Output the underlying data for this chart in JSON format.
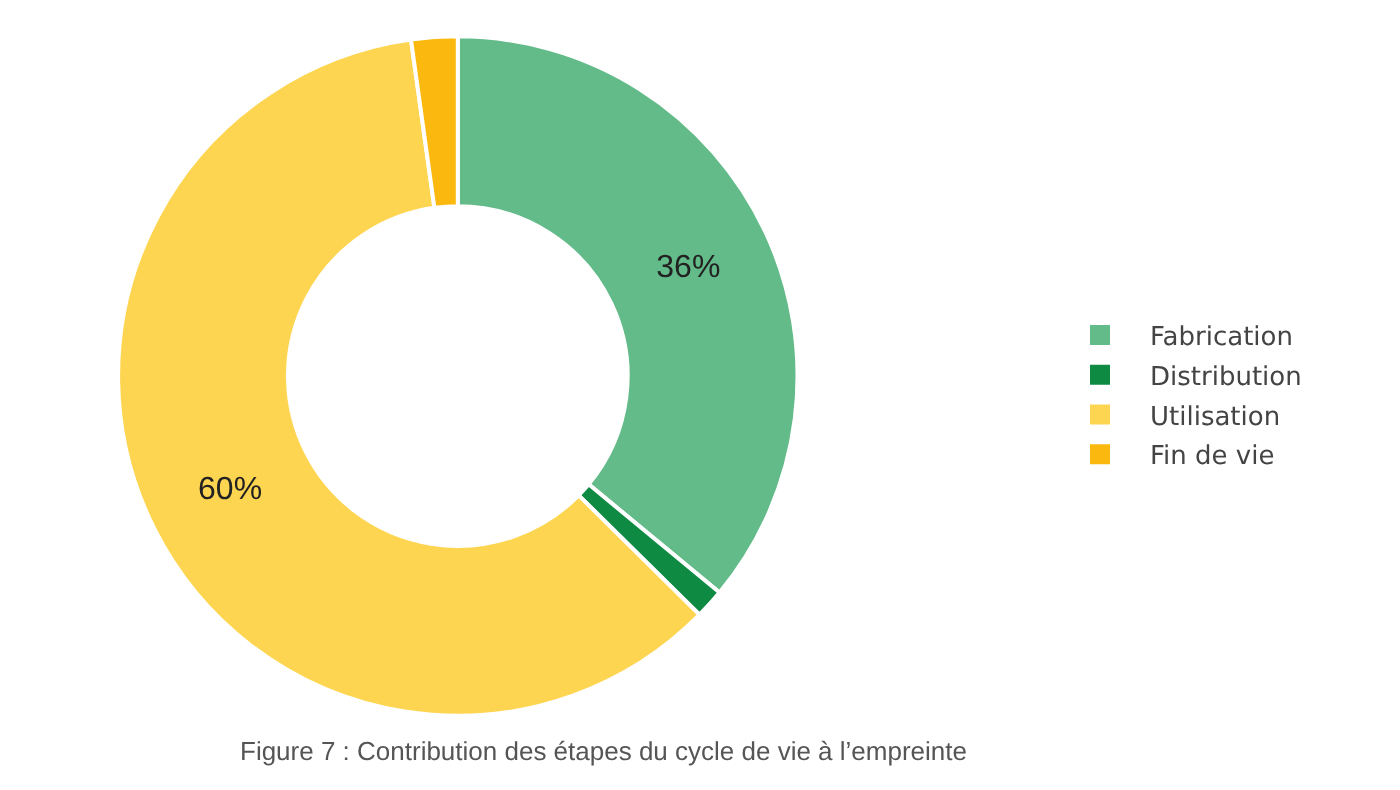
{
  "chart_data": {
    "type": "donut",
    "categories": [
      "Fabrication",
      "Distribution",
      "Utilisation",
      "Fin de vie"
    ],
    "values": [
      36,
      1.4,
      60.4,
      2.2
    ],
    "colors": [
      "#62bb88",
      "#0e8a43",
      "#fdd550",
      "#fbb80f"
    ],
    "value_labels": [
      "36%",
      null,
      "60%",
      null
    ],
    "legend": "right",
    "annotations": [
      "Figure 7 : Contribution des étapes du cycle de vie à l’empreinte"
    ]
  }
}
